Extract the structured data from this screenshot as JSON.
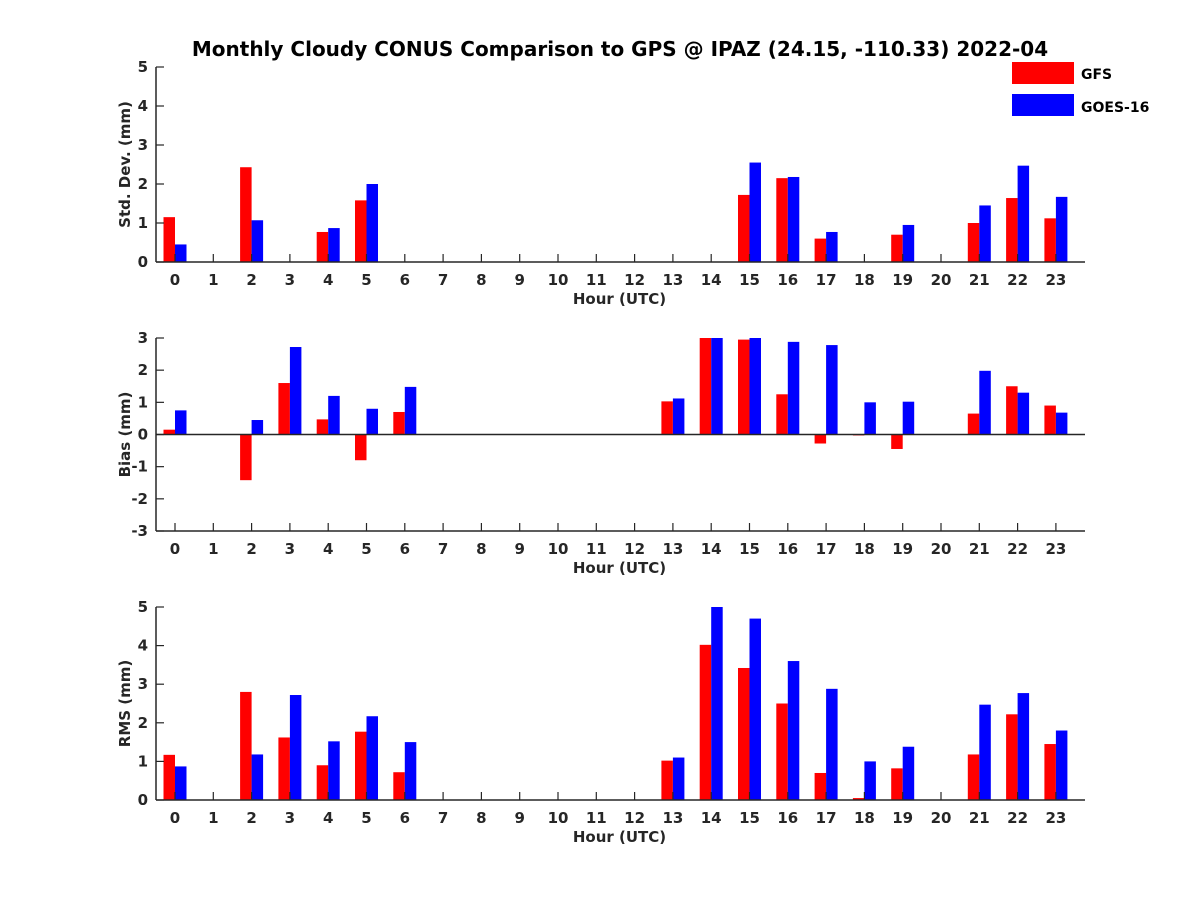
{
  "title": "Monthly Cloudy CONUS Comparison to GPS @ IPAZ (24.15, -110.33) 2022-04",
  "legend": [
    {
      "label": "GFS",
      "color": "#ff0000"
    },
    {
      "label": "GOES-16",
      "color": "#0000ff"
    }
  ],
  "chart_data": [
    {
      "type": "bar",
      "title": "Monthly Cloudy CONUS Comparison to GPS @ IPAZ (24.15, -110.33) 2022-04",
      "xlabel": "Hour (UTC)",
      "ylabel": "Std. Dev. (mm)",
      "ylim": [
        0,
        5
      ],
      "yticks": [
        "0",
        "1",
        "2",
        "3",
        "4",
        "5"
      ],
      "categories": [
        "0",
        "1",
        "2",
        "3",
        "4",
        "5",
        "6",
        "7",
        "8",
        "9",
        "10",
        "11",
        "12",
        "13",
        "14",
        "15",
        "16",
        "17",
        "18",
        "19",
        "20",
        "21",
        "22",
        "23"
      ],
      "series": [
        {
          "name": "GFS",
          "color": "#ff0000",
          "values": [
            1.15,
            null,
            2.43,
            null,
            0.77,
            1.58,
            null,
            null,
            null,
            null,
            null,
            null,
            null,
            null,
            null,
            1.72,
            2.15,
            0.6,
            null,
            0.7,
            null,
            1.0,
            1.64,
            1.12
          ]
        },
        {
          "name": "GOES-16",
          "color": "#0000ff",
          "values": [
            0.45,
            null,
            1.07,
            null,
            0.87,
            2.0,
            null,
            null,
            null,
            null,
            null,
            null,
            null,
            null,
            null,
            2.55,
            2.18,
            0.77,
            null,
            0.95,
            null,
            1.45,
            2.47,
            1.67
          ]
        }
      ]
    },
    {
      "type": "bar",
      "xlabel": "Hour (UTC)",
      "ylabel": "Bias (mm)",
      "ylim": [
        -3,
        3
      ],
      "yticks": [
        "-3",
        "-2",
        "-1",
        "0",
        "1",
        "2",
        "3"
      ],
      "categories": [
        "0",
        "1",
        "2",
        "3",
        "4",
        "5",
        "6",
        "7",
        "8",
        "9",
        "10",
        "11",
        "12",
        "13",
        "14",
        "15",
        "16",
        "17",
        "18",
        "19",
        "20",
        "21",
        "22",
        "23"
      ],
      "series": [
        {
          "name": "GFS",
          "color": "#ff0000",
          "values": [
            0.15,
            null,
            -1.42,
            1.6,
            0.47,
            -0.8,
            0.7,
            null,
            null,
            null,
            null,
            null,
            null,
            1.03,
            3.0,
            2.95,
            1.25,
            -0.28,
            -0.03,
            -0.45,
            null,
            0.65,
            1.5,
            0.9
          ]
        },
        {
          "name": "GOES-16",
          "color": "#0000ff",
          "values": [
            0.75,
            null,
            0.45,
            2.72,
            1.2,
            0.8,
            1.48,
            null,
            null,
            null,
            null,
            null,
            null,
            1.12,
            3.0,
            3.0,
            2.88,
            2.78,
            1.0,
            1.02,
            null,
            1.98,
            1.3,
            0.68
          ]
        }
      ]
    },
    {
      "type": "bar",
      "xlabel": "Hour (UTC)",
      "ylabel": "RMS (mm)",
      "ylim": [
        0,
        5
      ],
      "yticks": [
        "0",
        "1",
        "2",
        "3",
        "4",
        "5"
      ],
      "categories": [
        "0",
        "1",
        "2",
        "3",
        "4",
        "5",
        "6",
        "7",
        "8",
        "9",
        "10",
        "11",
        "12",
        "13",
        "14",
        "15",
        "16",
        "17",
        "18",
        "19",
        "20",
        "21",
        "22",
        "23"
      ],
      "series": [
        {
          "name": "GFS",
          "color": "#ff0000",
          "values": [
            1.17,
            null,
            2.8,
            1.62,
            0.9,
            1.77,
            0.72,
            null,
            null,
            null,
            null,
            null,
            null,
            1.02,
            4.02,
            3.42,
            2.5,
            0.7,
            0.05,
            0.82,
            null,
            1.18,
            2.22,
            1.45
          ]
        },
        {
          "name": "GOES-16",
          "color": "#0000ff",
          "values": [
            0.87,
            null,
            1.18,
            2.72,
            1.52,
            2.17,
            1.5,
            null,
            null,
            null,
            null,
            null,
            null,
            1.1,
            5.0,
            4.7,
            3.6,
            2.88,
            1.0,
            1.38,
            null,
            2.47,
            2.77,
            1.8
          ]
        }
      ]
    }
  ]
}
